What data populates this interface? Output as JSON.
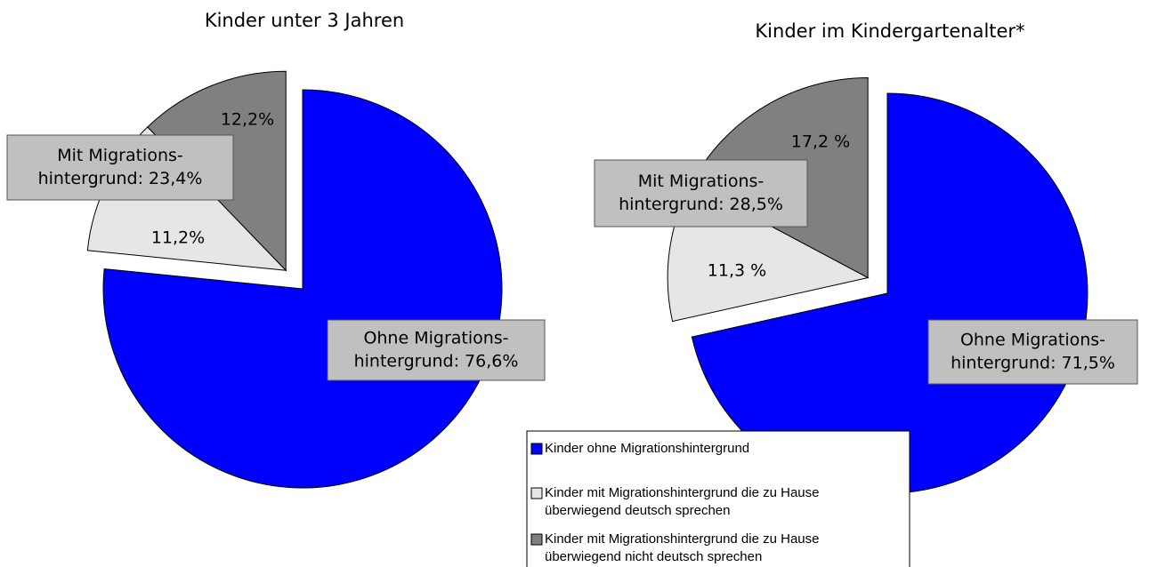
{
  "chart_data": [
    {
      "type": "pie",
      "title": "Kinder unter 3 Jahren",
      "values": [
        76.6,
        11.2,
        12.2
      ],
      "value_labels": [
        [
          "Ohne Migrations-",
          "hintergrund: 76,6%"
        ],
        "11,2%",
        "12,2%"
      ],
      "group_label": [
        "Mit Migrations-",
        "hintergrund: 23,4%"
      ],
      "group_value": 23.4
    },
    {
      "type": "pie",
      "title": "Kinder im Kindergartenalter*",
      "values": [
        71.5,
        11.3,
        17.2
      ],
      "value_labels": [
        [
          "Ohne Migrations-",
          "hintergrund: 71,5%"
        ],
        "11,3 %",
        "17,2 %"
      ],
      "group_label": [
        "Mit Migrations-",
        "hintergrund: 28,5%"
      ],
      "group_value": 28.5
    }
  ],
  "legend": {
    "labels": [
      [
        "Kinder ohne Migrationshintergrund"
      ],
      [
        "Kinder mit Migrationshintergrund die zu Hause",
        "überwiegend deutsch sprechen"
      ],
      [
        "Kinder mit Migrationshintergrund die zu Hause",
        "überwiegend nicht deutsch sprechen"
      ]
    ],
    "colors": [
      "#0000ff",
      "#e6e6e6",
      "#808080"
    ]
  }
}
